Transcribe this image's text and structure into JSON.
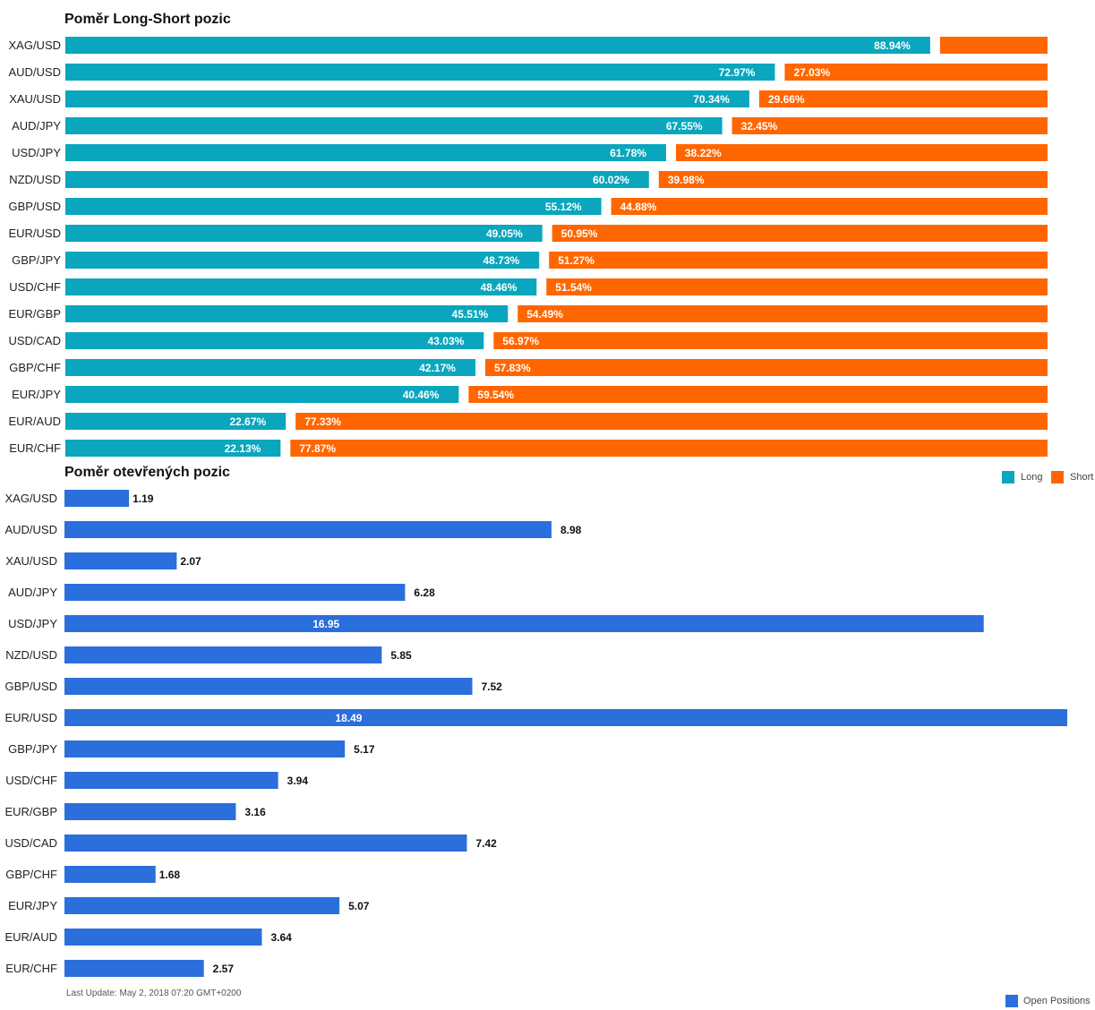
{
  "colors": {
    "long": "#0aa6bd",
    "short": "#ff6600",
    "open": "#2a6fdb"
  },
  "footnote": "Last Update: May 2, 2018 07:20 GMT+0200",
  "chart_data": [
    {
      "type": "bar",
      "orientation": "horizontal",
      "stacked": true,
      "title": "Poměr Long-Short pozic",
      "categories": [
        "XAG/USD",
        "AUD/USD",
        "XAU/USD",
        "AUD/JPY",
        "USD/JPY",
        "NZD/USD",
        "GBP/USD",
        "EUR/USD",
        "GBP/JPY",
        "USD/CHF",
        "EUR/GBP",
        "USD/CAD",
        "GBP/CHF",
        "EUR/JPY",
        "EUR/AUD",
        "EUR/CHF"
      ],
      "series": [
        {
          "name": "Long",
          "values": [
            88.94,
            72.97,
            70.34,
            67.55,
            61.78,
            60.02,
            55.12,
            49.05,
            48.73,
            48.46,
            45.51,
            43.03,
            42.17,
            40.46,
            22.67,
            22.13
          ],
          "labels": [
            "88.94%",
            "72.97%",
            "70.34%",
            "67.55%",
            "61.78%",
            "60.02%",
            "55.12%",
            "49.05%",
            "48.73%",
            "48.46%",
            "45.51%",
            "43.03%",
            "42.17%",
            "40.46%",
            "22.67%",
            "22.13%"
          ]
        },
        {
          "name": "Short",
          "values": [
            11.06,
            27.03,
            29.66,
            32.45,
            38.22,
            39.98,
            44.88,
            50.95,
            51.27,
            51.54,
            54.49,
            56.97,
            57.83,
            59.54,
            77.33,
            77.87
          ],
          "labels": [
            "",
            "27.03%",
            "29.66%",
            "32.45%",
            "38.22%",
            "39.98%",
            "44.88%",
            "50.95%",
            "51.27%",
            "51.54%",
            "54.49%",
            "56.97%",
            "57.83%",
            "59.54%",
            "77.33%",
            "77.87%"
          ]
        }
      ],
      "xlim": [
        0,
        100
      ],
      "legend": "bottom-right"
    },
    {
      "type": "bar",
      "orientation": "horizontal",
      "title": "Poměr otevřených pozic",
      "categories": [
        "XAG/USD",
        "AUD/USD",
        "XAU/USD",
        "AUD/JPY",
        "USD/JPY",
        "NZD/USD",
        "GBP/USD",
        "EUR/USD",
        "GBP/JPY",
        "USD/CHF",
        "EUR/GBP",
        "USD/CAD",
        "GBP/CHF",
        "EUR/JPY",
        "EUR/AUD",
        "EUR/CHF"
      ],
      "series": [
        {
          "name": "Open Positions",
          "values": [
            1.19,
            8.98,
            2.07,
            6.28,
            16.95,
            5.85,
            7.52,
            18.49,
            5.17,
            3.94,
            3.16,
            7.42,
            1.68,
            5.07,
            3.64,
            2.57
          ],
          "labels": [
            "1.19",
            "8.98",
            "2.07",
            "6.28",
            "16.95",
            "5.85",
            "7.52",
            "18.49",
            "5.17",
            "3.94",
            "3.16",
            "7.42",
            "1.68",
            "5.07",
            "3.64",
            "2.57"
          ]
        }
      ],
      "xlim": [
        0,
        18.49
      ],
      "legend": "bottom-right"
    }
  ]
}
